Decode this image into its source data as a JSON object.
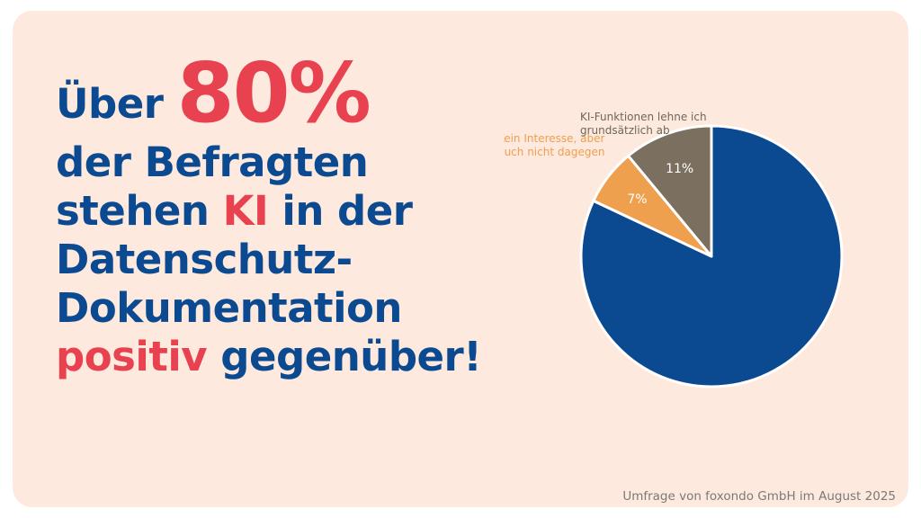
{
  "headline": {
    "l1_a": "Über",
    "l1_big": "80%",
    "l2": "der Befragten",
    "l3_a": "stehen",
    "l3_accent": "KI",
    "l3_b": "in der",
    "l4": "Datenschutz-",
    "l5": "Dokumentation",
    "l6_accent": "positiv",
    "l6_b": "gegenüber!"
  },
  "colors": {
    "blue": "#0b4a90",
    "orange": "#eea04f",
    "taupe": "#7b705f",
    "red": "#e8414f",
    "background": "#fde9dd"
  },
  "chart_data": {
    "type": "pie",
    "slices": [
      {
        "label": "",
        "value": 82,
        "value_label": "",
        "color": "#0b4a90"
      },
      {
        "label": "Kein Interesse, aber auch nicht dagegen",
        "value": 7,
        "value_label": "7%",
        "color": "#eea04f"
      },
      {
        "label": "KI-Funktionen lehne ich grundsätzlich ab",
        "value": 11,
        "value_label": "11%",
        "color": "#7b705f"
      }
    ],
    "start": "12 o'clock",
    "direction": "clockwise"
  },
  "source": "Umfrage von foxondo GmbH im August 2025"
}
